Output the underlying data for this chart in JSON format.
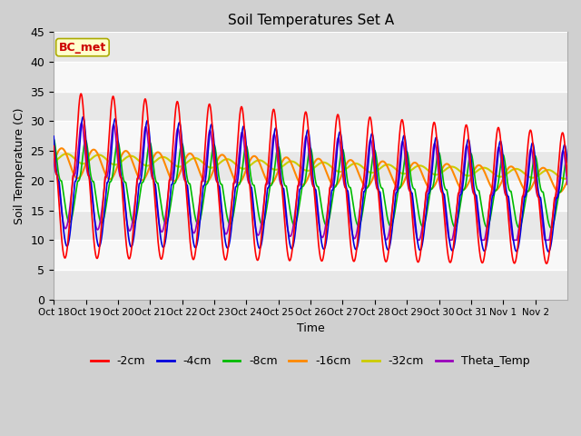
{
  "title": "Soil Temperatures Set A",
  "xlabel": "Time",
  "ylabel": "Soil Temperature (C)",
  "ylim": [
    0,
    45
  ],
  "yticks": [
    0,
    5,
    10,
    15,
    20,
    25,
    30,
    35,
    40,
    45
  ],
  "fig_bg": "#d0d0d0",
  "plot_bg": "#ffffff",
  "annotation_text": "BC_met",
  "annotation_bg": "#ffffcc",
  "annotation_fg": "#cc0000",
  "n_days": 16,
  "series": [
    "-2cm",
    "-4cm",
    "-8cm",
    "-16cm",
    "-32cm",
    "Theta_Temp"
  ],
  "series_colors": {
    "-2cm": "#ff0000",
    "-4cm": "#0000dd",
    "-8cm": "#00bb00",
    "-16cm": "#ff8800",
    "-32cm": "#cccc00",
    "Theta_Temp": "#9900bb"
  },
  "xtick_labels": [
    "Oct 18",
    "Oct 19",
    "Oct 20",
    "Oct 21",
    "Oct 22",
    "Oct 23",
    "Oct 24",
    "Oct 25",
    "Oct 26",
    "Oct 27",
    "Oct 28",
    "Oct 29",
    "Oct 30",
    "Oct 31",
    "Nov 1",
    "Nov 2"
  ],
  "band_colors": [
    "#e8e8e8",
    "#f8f8f8"
  ]
}
